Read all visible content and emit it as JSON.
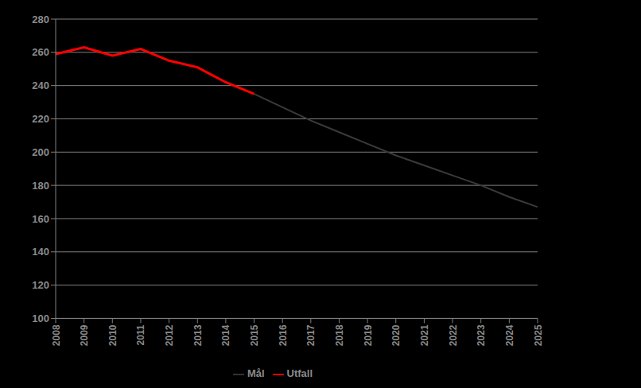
{
  "chart_data": {
    "type": "line",
    "categories": [
      "2008",
      "2009",
      "2010",
      "2011",
      "2012",
      "2013",
      "2014",
      "2015",
      "2016",
      "2017",
      "2018",
      "2019",
      "2020",
      "2021",
      "2022",
      "2023",
      "2024",
      "2025"
    ],
    "series": [
      {
        "name": "Mål",
        "color": "#3a3a3a",
        "values": [
          null,
          null,
          null,
          null,
          null,
          null,
          null,
          235,
          227,
          219,
          212,
          205,
          198,
          192,
          186,
          180,
          173,
          167
        ]
      },
      {
        "name": "Utfall",
        "color": "#ff0000",
        "values": [
          259,
          263,
          258,
          262,
          255,
          251,
          242,
          235,
          null,
          null,
          null,
          null,
          null,
          null,
          null,
          null,
          null,
          null
        ]
      }
    ],
    "ylim": [
      100,
      280
    ],
    "yticks": [
      100,
      120,
      140,
      160,
      180,
      200,
      220,
      240,
      260,
      280
    ],
    "grid": true,
    "legend": "bottom"
  }
}
